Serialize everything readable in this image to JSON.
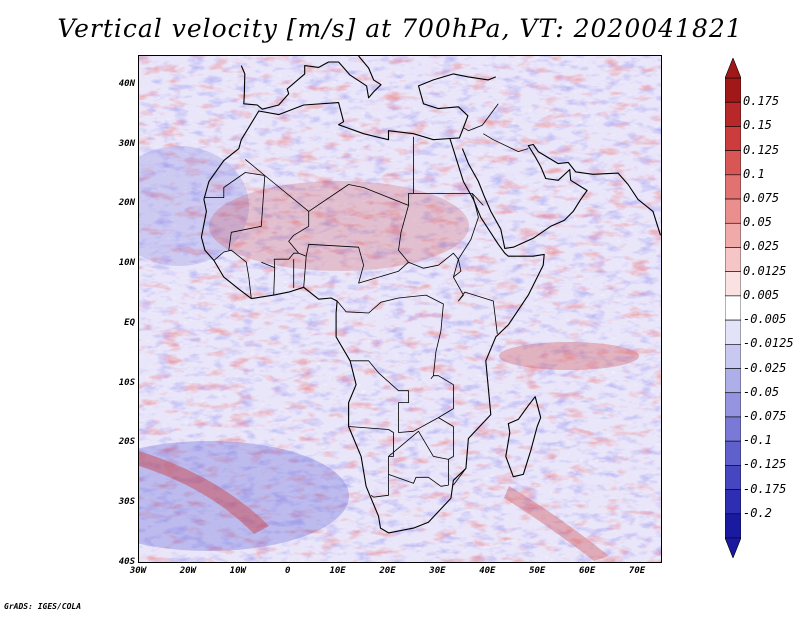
{
  "title": "Vertical velocity [m/s] at 700hPa, VT: 2020041821",
  "credit": "GrADS: IGES/COLA",
  "map": {
    "variable": "vertical velocity",
    "level": "700hPa",
    "valid_time": "2020041821",
    "lon_range": [
      -30,
      75
    ],
    "lat_range": [
      -40,
      45
    ],
    "lat_labels": [
      "40N",
      "30N",
      "20N",
      "10N",
      "EQ",
      "10S",
      "20S",
      "30S",
      "40S"
    ],
    "lon_labels": [
      "30W",
      "20W",
      "10W",
      "0",
      "10E",
      "20E",
      "30E",
      "40E",
      "50E",
      "60E",
      "70E"
    ],
    "coastline_color": "#000000"
  },
  "colorbar": {
    "labels": [
      "0.175",
      "0.15",
      "0.125",
      "0.1",
      "0.075",
      "0.05",
      "0.025",
      "0.0125",
      "0.005",
      "-0.005",
      "-0.0125",
      "-0.025",
      "-0.05",
      "-0.075",
      "-0.1",
      "-0.125",
      "-0.175",
      "-0.2"
    ],
    "colors": [
      "#a01818",
      "#b82828",
      "#cc3c3c",
      "#d85656",
      "#e27272",
      "#ea8e8e",
      "#f0aaaa",
      "#f6c6c6",
      "#fbe2e2",
      "#ffffff",
      "#e2e2f8",
      "#c8c8f0",
      "#aeaee8",
      "#9494e0",
      "#7a7ad6",
      "#6060cc",
      "#4646c0",
      "#2e2eb2",
      "#1a1aa0"
    ],
    "end_colors": {
      "top": "#a01818",
      "bottom": "#1a1aa0"
    }
  }
}
